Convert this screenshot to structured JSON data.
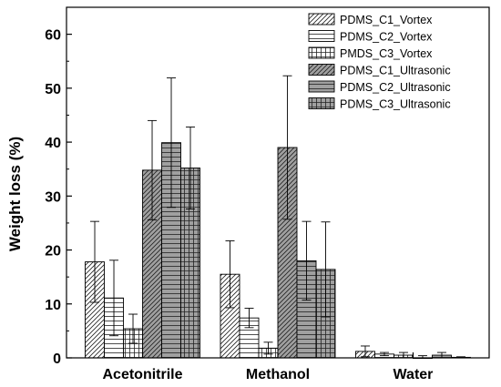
{
  "chart_data": {
    "type": "bar",
    "title": "",
    "xlabel": "",
    "ylabel": "Weight loss (%)",
    "ylim": [
      0,
      65
    ],
    "yticks": [
      0,
      10,
      20,
      30,
      40,
      50,
      60
    ],
    "ytick_labels": [
      "0",
      "10",
      "20",
      "30",
      "40",
      "50",
      "60"
    ],
    "categories": [
      "Acetonitrile",
      "Methanol",
      "Water"
    ],
    "grid": false,
    "legend_position": "top-right",
    "series": [
      {
        "name": "PDMS_C1_Vortex",
        "pattern": "diagonal-white",
        "values": [
          17.8,
          15.5,
          1.2
        ],
        "errors": [
          7.5,
          6.2,
          1.0
        ]
      },
      {
        "name": "PDMS_C2_Vortex",
        "pattern": "horizontal-white",
        "values": [
          11.1,
          7.4,
          0.7
        ],
        "errors": [
          7.0,
          1.8,
          0.3
        ]
      },
      {
        "name": "PMDS_C3_Vortex",
        "pattern": "grid-white",
        "values": [
          5.4,
          1.8,
          0.5
        ],
        "errors": [
          2.7,
          1.1,
          0.5
        ]
      },
      {
        "name": "PDMS_C1_Ultrasonic",
        "pattern": "diagonal-gray",
        "values": [
          34.8,
          39.0,
          0.0
        ],
        "errors": [
          9.2,
          13.3,
          0.4
        ]
      },
      {
        "name": "PDMS_C2_Ultrasonic",
        "pattern": "horizontal-gray",
        "values": [
          39.9,
          18.0,
          0.5
        ],
        "errors": [
          12.0,
          7.3,
          0.5
        ]
      },
      {
        "name": "PDMS_C3_Ultrasonic",
        "pattern": "grid-gray",
        "values": [
          35.2,
          16.4,
          0.1
        ],
        "errors": [
          7.6,
          8.8,
          0.1
        ]
      }
    ],
    "colors": {
      "gray_fill": "#a0a0a0",
      "white_fill": "#ffffff",
      "stroke": "#000000"
    }
  }
}
